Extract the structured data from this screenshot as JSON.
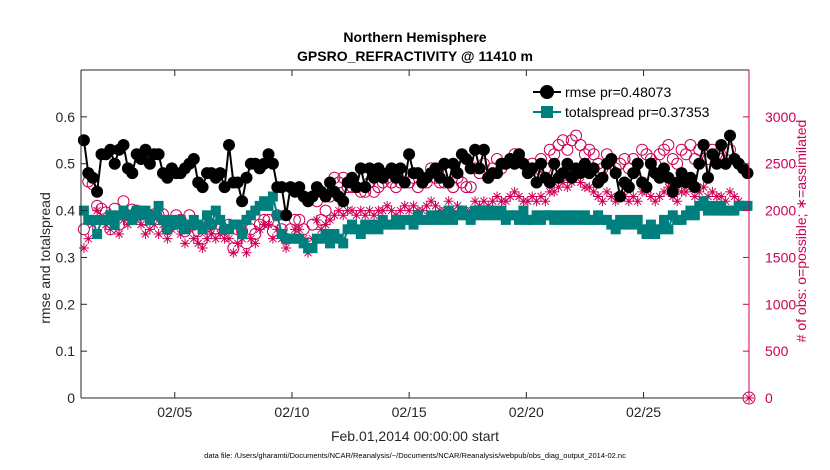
{
  "chart_data": {
    "type": "line",
    "title": "Northern Hemisphere",
    "subtitle": "GPSRO_REFRACTIVITY @ 11410 m",
    "xlabel": "Feb.01,2014 00:00:00 start",
    "ylabel": "rmse and totalspread",
    "y2label": "# of obs: o=possible; ∗=assimilated",
    "footer": "data file: /Users/gharamti/Documents/NCAR/Reanalysis/~/Documents/NCAR/Reanalysis/webpub/obs_diag_output_2014-02.nc",
    "xlim": [
      1.0,
      29.5
    ],
    "ylim": [
      0,
      0.7
    ],
    "y2lim": [
      0,
      3500
    ],
    "x_ticks": [
      5,
      10,
      15,
      20,
      25
    ],
    "x_tick_labels": [
      "02/05",
      "02/10",
      "02/15",
      "02/20",
      "02/25"
    ],
    "y_ticks": [
      0,
      0.1,
      0.2,
      0.3,
      0.4,
      0.5,
      0.6
    ],
    "y_tick_labels": [
      "0",
      "0.1",
      "0.2",
      "0.3",
      "0.4",
      "0.5",
      "0.6"
    ],
    "y2_ticks": [
      0,
      500,
      1000,
      1500,
      2000,
      2500,
      3000
    ],
    "y2_tick_labels": [
      "0",
      "500",
      "1000",
      "1500",
      "2000",
      "2500",
      "3000"
    ],
    "legend_position": "top-right",
    "colors": {
      "rmse": "#000000",
      "totalspread": "#007f7f",
      "obs": "#cc0055"
    },
    "series": [
      {
        "name": "rmse pr=0.48073",
        "axis": "left",
        "marker": "circle",
        "values": [
          0.55,
          0.48,
          0.47,
          0.44,
          0.52,
          0.52,
          0.53,
          0.5,
          0.53,
          0.54,
          0.49,
          0.48,
          0.52,
          0.51,
          0.53,
          0.5,
          0.52,
          0.52,
          0.48,
          0.47,
          0.49,
          0.48,
          0.48,
          0.49,
          0.5,
          0.51,
          0.46,
          0.45,
          0.48,
          0.48,
          0.47,
          0.48,
          0.45,
          0.54,
          0.46,
          0.46,
          0.42,
          0.47,
          0.5,
          0.5,
          0.49,
          0.5,
          0.52,
          0.5,
          0.45,
          0.45,
          0.39,
          0.45,
          0.44,
          0.45,
          0.43,
          0.42,
          0.43,
          0.45,
          0.44,
          0.43,
          0.46,
          0.44,
          0.43,
          0.42,
          0.46,
          0.47,
          0.45,
          0.49,
          0.45,
          0.49,
          0.47,
          0.49,
          0.47,
          0.48,
          0.49,
          0.47,
          0.49,
          0.46,
          0.52,
          0.48,
          0.48,
          0.46,
          0.47,
          0.48,
          0.49,
          0.47,
          0.5,
          0.46,
          0.5,
          0.48,
          0.52,
          0.51,
          0.49,
          0.53,
          0.49,
          0.53,
          0.47,
          0.48,
          0.48,
          0.5,
          0.5,
          0.51,
          0.5,
          0.52,
          0.5,
          0.48,
          0.49,
          0.46,
          0.5,
          0.47,
          0.46,
          0.5,
          0.47,
          0.48,
          0.5,
          0.47,
          0.49,
          0.48,
          0.5,
          0.48,
          0.49,
          0.46,
          0.47,
          0.5,
          0.51,
          0.48,
          0.43,
          0.46,
          0.45,
          0.48,
          0.5,
          0.46,
          0.45,
          0.5,
          0.48,
          0.47,
          0.49,
          0.47,
          0.44,
          0.46,
          0.48,
          0.46,
          0.47,
          0.45,
          0.5,
          0.54,
          0.47,
          0.52,
          0.5,
          0.54,
          0.5,
          0.56,
          0.51,
          0.5,
          0.49,
          0.48
        ]
      },
      {
        "name": "totalspread pr=0.37353",
        "axis": "left",
        "marker": "square",
        "values": [
          0.4,
          0.38,
          0.38,
          0.35,
          0.38,
          0.38,
          0.39,
          0.37,
          0.39,
          0.4,
          0.39,
          0.38,
          0.4,
          0.39,
          0.4,
          0.38,
          0.39,
          0.41,
          0.38,
          0.36,
          0.38,
          0.37,
          0.38,
          0.36,
          0.37,
          0.38,
          0.37,
          0.36,
          0.39,
          0.37,
          0.4,
          0.38,
          0.36,
          0.36,
          0.37,
          0.37,
          0.35,
          0.38,
          0.39,
          0.4,
          0.41,
          0.42,
          0.41,
          0.43,
          0.39,
          0.35,
          0.34,
          0.34,
          0.34,
          0.34,
          0.33,
          0.32,
          0.32,
          0.34,
          0.34,
          0.35,
          0.33,
          0.35,
          0.34,
          0.33,
          0.36,
          0.37,
          0.36,
          0.35,
          0.37,
          0.36,
          0.37,
          0.36,
          0.38,
          0.37,
          0.37,
          0.38,
          0.37,
          0.38,
          0.38,
          0.37,
          0.39,
          0.38,
          0.38,
          0.39,
          0.38,
          0.39,
          0.38,
          0.4,
          0.38,
          0.39,
          0.4,
          0.39,
          0.38,
          0.4,
          0.39,
          0.4,
          0.39,
          0.4,
          0.39,
          0.4,
          0.38,
          0.39,
          0.39,
          0.38,
          0.4,
          0.38,
          0.38,
          0.39,
          0.38,
          0.39,
          0.39,
          0.38,
          0.39,
          0.38,
          0.39,
          0.38,
          0.39,
          0.38,
          0.39,
          0.38,
          0.38,
          0.39,
          0.38,
          0.38,
          0.37,
          0.36,
          0.38,
          0.37,
          0.38,
          0.37,
          0.38,
          0.36,
          0.35,
          0.37,
          0.35,
          0.36,
          0.38,
          0.36,
          0.39,
          0.38,
          0.38,
          0.39,
          0.4,
          0.39,
          0.41,
          0.42,
          0.4,
          0.41,
          0.4,
          0.41,
          0.4,
          0.4,
          0.4,
          0.41,
          0.41,
          0.41
        ]
      },
      {
        "name": "possible obs",
        "axis": "right",
        "marker": "open-circle",
        "values": [
          1800,
          2310,
          2280,
          2050,
          2020,
          1980,
          1800,
          2020,
          1850,
          2100,
          1950,
          2010,
          2000,
          1980,
          1900,
          1950,
          1960,
          1950,
          1960,
          1800,
          1850,
          1950,
          1900,
          1780,
          1950,
          1850,
          1780,
          1700,
          1830,
          1850,
          1810,
          1850,
          1800,
          1850,
          1600,
          1800,
          1780,
          1650,
          1800,
          1750,
          1850,
          1900,
          1900,
          1780,
          1950,
          1800,
          1700,
          1800,
          1900,
          1900,
          1800,
          1650,
          1850,
          2100,
          1900,
          2000,
          2150,
          2350,
          2300,
          2350,
          2250,
          2250,
          2250,
          2200,
          2200,
          2300,
          2200,
          2250,
          2300,
          2350,
          2300,
          2250,
          2300,
          2400,
          2300,
          2350,
          2250,
          2300,
          2300,
          2450,
          2350,
          2300,
          2300,
          2400,
          2250,
          2350,
          2300,
          2250,
          2250,
          2450,
          2400,
          2500,
          2350,
          2450,
          2550,
          2450,
          2500,
          2550,
          2600,
          2550,
          2500,
          2450,
          2500,
          2450,
          2550,
          2450,
          2650,
          2600,
          2700,
          2750,
          2650,
          2750,
          2800,
          2700,
          2600,
          2650,
          2600,
          2500,
          2450,
          2600,
          2550,
          2450,
          2500,
          2550,
          2450,
          2550,
          2500,
          2650,
          2600,
          2550,
          2500,
          2600,
          2650,
          2700,
          2550,
          2500,
          2650,
          2600,
          2700,
          2550,
          2650,
          2700,
          2550,
          2650,
          2600,
          2550,
          2500,
          2650,
          2550,
          2500
        ]
      },
      {
        "name": "assimilated obs",
        "axis": "right",
        "marker": "asterisk",
        "values": [
          1600,
          1700,
          1850,
          2000,
          1900,
          1850,
          1800,
          1850,
          1750,
          1900,
          1850,
          1950,
          1900,
          1850,
          1750,
          1800,
          1850,
          1750,
          1850,
          1700,
          1800,
          1850,
          1750,
          1650,
          1800,
          1700,
          1650,
          1600,
          1700,
          1750,
          1700,
          1750,
          1700,
          1700,
          1550,
          1650,
          1700,
          1550,
          1700,
          1650,
          1800,
          1850,
          1850,
          1700,
          1800,
          1700,
          1600,
          1700,
          1800,
          1800,
          1700,
          1550,
          1700,
          1900,
          1800,
          1850,
          1900,
          1950,
          2000,
          1950,
          2000,
          2000,
          1950,
          2000,
          1950,
          2000,
          1950,
          2000,
          2000,
          2050,
          2000,
          1950,
          2000,
          2050,
          2000,
          2050,
          2000,
          2000,
          2050,
          2100,
          2050,
          2000,
          2000,
          2100,
          2000,
          2050,
          2000,
          2000,
          2000,
          2100,
          2050,
          2100,
          2050,
          2100,
          2150,
          2100,
          2100,
          2150,
          2200,
          2150,
          2100,
          2100,
          2150,
          2100,
          2150,
          2100,
          2200,
          2200,
          2250,
          2300,
          2250,
          2300,
          2350,
          2300,
          2250,
          2250,
          2200,
          2150,
          2100,
          2200,
          2150,
          2100,
          2150,
          2150,
          2100,
          2150,
          2100,
          2200,
          2200,
          2150,
          2100,
          2150,
          2200,
          2250,
          2150,
          2100,
          2200,
          2200,
          2250,
          2150,
          2200,
          2250,
          2150,
          2200,
          2150,
          2150,
          2100,
          2200,
          2150,
          2100
        ]
      }
    ]
  }
}
